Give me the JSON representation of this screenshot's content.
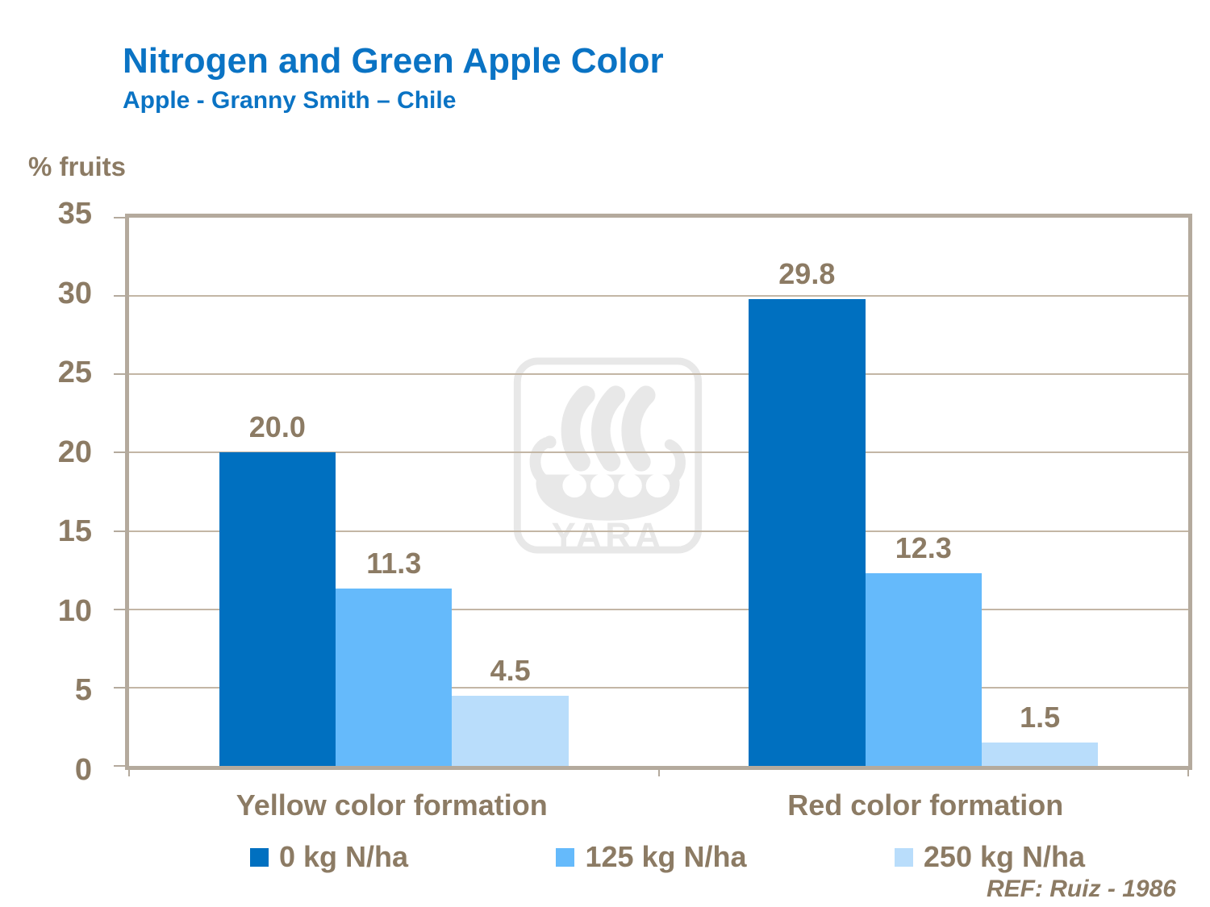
{
  "title": "Nitrogen and Green Apple Color",
  "subtitle": "Apple - Granny Smith – Chile",
  "y_axis_title": "% fruits",
  "reference": "REF: Ruiz - 1986",
  "watermark": {
    "text": "YARA"
  },
  "colors": {
    "title_blue": "#0A73C4",
    "text_brown": "#8C7B64",
    "frame": "#B4AA9D",
    "gridline": "#C3B6A5",
    "watermark_gray": "#E8E8E8"
  },
  "chart_data": {
    "type": "bar",
    "title": "Nitrogen and Green Apple Color",
    "subtitle": "Apple - Granny Smith – Chile",
    "xlabel": "",
    "ylabel": "% fruits",
    "categories": [
      "Yellow color formation",
      "Red color formation"
    ],
    "series": [
      {
        "name": "0 kg N/ha",
        "color": "#0070C0",
        "values": [
          20.0,
          29.8
        ]
      },
      {
        "name": "125 kg N/ha",
        "color": "#65BAFB",
        "values": [
          11.3,
          12.3
        ]
      },
      {
        "name": "250 kg N/ha",
        "color": "#B9DDFB",
        "values": [
          4.5,
          1.5
        ]
      }
    ],
    "value_labels": [
      [
        "20.0",
        "11.3",
        "4.5"
      ],
      [
        "29.8",
        "12.3",
        "1.5"
      ]
    ],
    "ylim": [
      0,
      35
    ],
    "yticks": [
      0,
      5,
      10,
      15,
      20,
      25,
      30,
      35
    ],
    "grid": true,
    "legend_position": "bottom"
  }
}
